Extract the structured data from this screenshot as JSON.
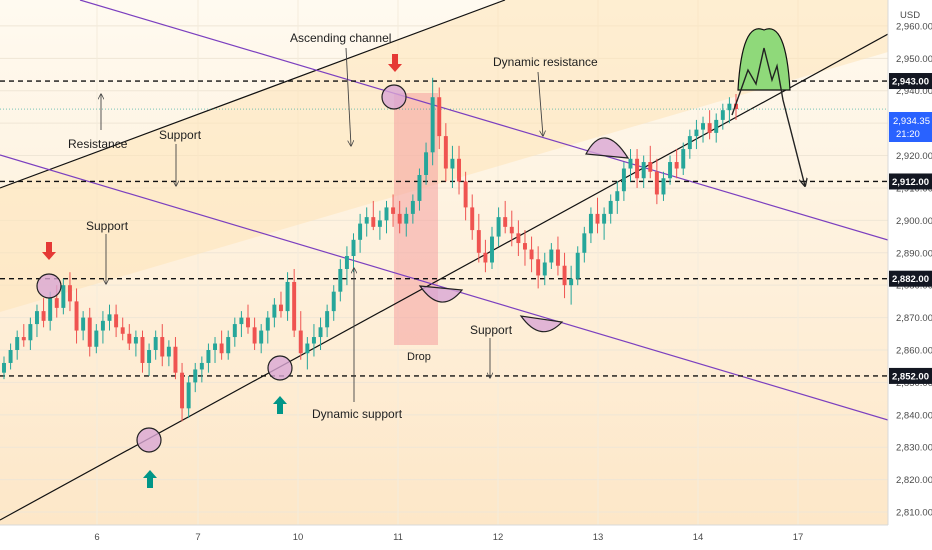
{
  "chart_data": {
    "type": "candlestick",
    "currency": "USD",
    "x_ticks": [
      "6",
      "7",
      "10",
      "11",
      "12",
      "13",
      "14",
      "17"
    ],
    "y_ticks": [
      2810,
      2820,
      2830,
      2840,
      2850,
      2860,
      2870,
      2880,
      2890,
      2900,
      2910,
      2920,
      2930,
      2940,
      2950,
      2960
    ],
    "ylim": [
      2806,
      2968
    ],
    "current_price": "2,934.35",
    "countdown": "21:20",
    "levels": [
      {
        "value": 2943,
        "label": "2,943.00"
      },
      {
        "value": 2912,
        "label": "2,912.00"
      },
      {
        "value": 2882,
        "label": "2,882.00"
      },
      {
        "value": 2852,
        "label": "2,852.00"
      }
    ],
    "candles_ohlc": [
      [
        2853,
        2858,
        2851,
        2856
      ],
      [
        2856,
        2862,
        2854,
        2860
      ],
      [
        2860,
        2866,
        2857,
        2864
      ],
      [
        2864,
        2868,
        2861,
        2863
      ],
      [
        2863,
        2870,
        2860,
        2868
      ],
      [
        2868,
        2874,
        2864,
        2872
      ],
      [
        2872,
        2876,
        2867,
        2869
      ],
      [
        2869,
        2878,
        2866,
        2876
      ],
      [
        2876,
        2880,
        2870,
        2873
      ],
      [
        2873,
        2882,
        2871,
        2880
      ],
      [
        2880,
        2884,
        2872,
        2875
      ],
      [
        2875,
        2879,
        2862,
        2866
      ],
      [
        2866,
        2872,
        2863,
        2870
      ],
      [
        2870,
        2873,
        2858,
        2861
      ],
      [
        2861,
        2868,
        2859,
        2866
      ],
      [
        2866,
        2872,
        2862,
        2869
      ],
      [
        2869,
        2874,
        2866,
        2871
      ],
      [
        2871,
        2874,
        2864,
        2867
      ],
      [
        2867,
        2870,
        2863,
        2865
      ],
      [
        2865,
        2868,
        2860,
        2862
      ],
      [
        2862,
        2866,
        2858,
        2864
      ],
      [
        2864,
        2866,
        2853,
        2856
      ],
      [
        2856,
        2862,
        2852,
        2860
      ],
      [
        2860,
        2866,
        2857,
        2864
      ],
      [
        2864,
        2868,
        2855,
        2858
      ],
      [
        2858,
        2863,
        2855,
        2861
      ],
      [
        2861,
        2864,
        2851,
        2853
      ],
      [
        2853,
        2856,
        2838,
        2842
      ],
      [
        2842,
        2852,
        2839,
        2850
      ],
      [
        2850,
        2856,
        2847,
        2854
      ],
      [
        2854,
        2858,
        2850,
        2856
      ],
      [
        2856,
        2862,
        2853,
        2860
      ],
      [
        2860,
        2864,
        2856,
        2862
      ],
      [
        2862,
        2866,
        2857,
        2859
      ],
      [
        2859,
        2866,
        2857,
        2864
      ],
      [
        2864,
        2870,
        2861,
        2868
      ],
      [
        2868,
        2872,
        2864,
        2870
      ],
      [
        2870,
        2874,
        2865,
        2867
      ],
      [
        2867,
        2870,
        2860,
        2862
      ],
      [
        2862,
        2868,
        2859,
        2866
      ],
      [
        2866,
        2872,
        2862,
        2870
      ],
      [
        2870,
        2876,
        2867,
        2874
      ],
      [
        2874,
        2878,
        2870,
        2872
      ],
      [
        2872,
        2884,
        2869,
        2881
      ],
      [
        2881,
        2885,
        2864,
        2866
      ],
      [
        2866,
        2872,
        2857,
        2859
      ],
      [
        2859,
        2864,
        2854,
        2862
      ],
      [
        2862,
        2868,
        2858,
        2864
      ],
      [
        2864,
        2870,
        2860,
        2867
      ],
      [
        2867,
        2874,
        2864,
        2872
      ],
      [
        2872,
        2880,
        2869,
        2878
      ],
      [
        2878,
        2888,
        2875,
        2885
      ],
      [
        2885,
        2892,
        2880,
        2889
      ],
      [
        2889,
        2896,
        2884,
        2894
      ],
      [
        2894,
        2902,
        2890,
        2899
      ],
      [
        2899,
        2904,
        2895,
        2901
      ],
      [
        2901,
        2906,
        2897,
        2898
      ],
      [
        2898,
        2903,
        2894,
        2900
      ],
      [
        2900,
        2906,
        2896,
        2904
      ],
      [
        2904,
        2908,
        2898,
        2902
      ],
      [
        2902,
        2906,
        2896,
        2899
      ],
      [
        2899,
        2904,
        2895,
        2902
      ],
      [
        2902,
        2908,
        2899,
        2906
      ],
      [
        2906,
        2916,
        2903,
        2914
      ],
      [
        2914,
        2924,
        2911,
        2921
      ],
      [
        2921,
        2944,
        2917,
        2938
      ],
      [
        2938,
        2941,
        2922,
        2926
      ],
      [
        2926,
        2930,
        2912,
        2916
      ],
      [
        2916,
        2923,
        2910,
        2919
      ],
      [
        2919,
        2923,
        2908,
        2912
      ],
      [
        2912,
        2915,
        2900,
        2904
      ],
      [
        2904,
        2908,
        2894,
        2897
      ],
      [
        2897,
        2902,
        2887,
        2890
      ],
      [
        2890,
        2894,
        2884,
        2887
      ],
      [
        2887,
        2898,
        2885,
        2895
      ],
      [
        2895,
        2904,
        2892,
        2901
      ],
      [
        2901,
        2906,
        2896,
        2898
      ],
      [
        2898,
        2903,
        2892,
        2896
      ],
      [
        2896,
        2900,
        2889,
        2893
      ],
      [
        2893,
        2897,
        2886,
        2891
      ],
      [
        2891,
        2895,
        2884,
        2888
      ],
      [
        2888,
        2892,
        2879,
        2883
      ],
      [
        2883,
        2890,
        2880,
        2887
      ],
      [
        2887,
        2893,
        2885,
        2891
      ],
      [
        2891,
        2895,
        2883,
        2886
      ],
      [
        2886,
        2890,
        2876,
        2880
      ],
      [
        2880,
        2886,
        2874,
        2882
      ],
      [
        2882,
        2892,
        2880,
        2890
      ],
      [
        2890,
        2898,
        2887,
        2896
      ],
      [
        2896,
        2904,
        2893,
        2902
      ],
      [
        2902,
        2907,
        2896,
        2899
      ],
      [
        2899,
        2904,
        2894,
        2902
      ],
      [
        2902,
        2908,
        2899,
        2906
      ],
      [
        2906,
        2912,
        2902,
        2909
      ],
      [
        2909,
        2918,
        2906,
        2916
      ],
      [
        2916,
        2922,
        2912,
        2919
      ],
      [
        2919,
        2922,
        2910,
        2913
      ],
      [
        2913,
        2920,
        2910,
        2918
      ],
      [
        2918,
        2923,
        2913,
        2915
      ],
      [
        2915,
        2919,
        2905,
        2908
      ],
      [
        2908,
        2915,
        2906,
        2913
      ],
      [
        2913,
        2920,
        2911,
        2918
      ],
      [
        2918,
        2922,
        2913,
        2916
      ],
      [
        2916,
        2924,
        2914,
        2922
      ],
      [
        2922,
        2928,
        2919,
        2926
      ],
      [
        2926,
        2931,
        2922,
        2928
      ],
      [
        2928,
        2932,
        2924,
        2930
      ],
      [
        2930,
        2934,
        2925,
        2927
      ],
      [
        2927,
        2933,
        2924,
        2931
      ],
      [
        2931,
        2936,
        2928,
        2934
      ],
      [
        2934,
        2938,
        2930,
        2936
      ],
      [
        2936,
        2939,
        2931,
        2934.35
      ]
    ]
  },
  "annotations": {
    "ascending_channel": "Ascending channel",
    "dynamic_resistance": "Dynamic resistance",
    "resistance": "Resistance",
    "support_top": "Support",
    "support_left": "Support",
    "support_mid": "Support",
    "dynamic_support": "Dynamic support",
    "drop": "Drop"
  },
  "colors": {
    "bull": "#26a69a",
    "bear": "#ef5350",
    "purple_line": "#7b3fbf",
    "circle_fill": "#d9a6d4",
    "green_zone": "#8fd97a",
    "price_tag": "#2962ff",
    "level_tag": "#131722"
  }
}
